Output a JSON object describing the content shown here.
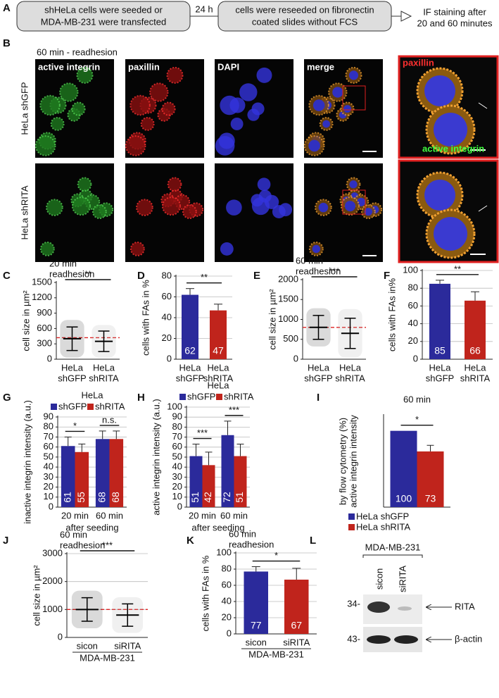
{
  "panel_a": {
    "label": "A",
    "step_1": [
      "shHeLa cells were seeded or",
      "MDA-MB-231 were transfected"
    ],
    "interval": "24 h",
    "step_2": [
      "cells were reseeded on fibronectin",
      "coated slides without FCS"
    ],
    "step_3": [
      "IF staining after",
      "20 and 60 minutes"
    ]
  },
  "panel_b": {
    "label": "B",
    "title": "60 min - readhesion",
    "channels": [
      "active integrin",
      "paxillin",
      "DAPI",
      "merge"
    ],
    "rows": [
      "HeLa shGFP",
      "HeLa shRITA"
    ],
    "zoom_labels": [
      "paxillin",
      "active integrin"
    ]
  },
  "chart_data": [
    {
      "type": "dot",
      "label": "C",
      "title": [
        "20 min",
        "readhesion"
      ],
      "ylabel": "cell size in µm²",
      "categories": [
        [
          "HeLa",
          "shGFP"
        ],
        [
          "HeLa",
          "shRITA"
        ]
      ],
      "means": [
        400,
        350
      ],
      "sd": [
        230,
        200
      ],
      "reference_line": 420,
      "significance": "**",
      "ylim": [
        0,
        1500
      ],
      "yticks": [
        0,
        300,
        600,
        900,
        1200,
        1500
      ]
    },
    {
      "type": "bar",
      "label": "D",
      "ylabel": "cells with FAs in %",
      "categories": [
        [
          "HeLa",
          "shGFP"
        ],
        [
          "HeLa",
          "shRITA"
        ]
      ],
      "values": [
        62,
        47
      ],
      "errors": [
        6,
        6
      ],
      "colors": [
        "#2b2a9b",
        "#c0241c"
      ],
      "significance": "**",
      "ylim": [
        0,
        80
      ],
      "yticks": [
        0,
        20,
        40,
        60,
        80
      ],
      "grid": true
    },
    {
      "type": "dot",
      "label": "E",
      "title": [
        "60 min",
        "readhesion"
      ],
      "ylabel": "cell size in µm²",
      "categories": [
        [
          "HeLa",
          "shGFP"
        ],
        [
          "HeLa",
          "shRITA"
        ]
      ],
      "means": [
        800,
        650
      ],
      "sd": [
        300,
        380
      ],
      "reference_line": 800,
      "significance": "***",
      "ylim": [
        0,
        2000
      ],
      "yticks": [
        0,
        500,
        1000,
        1500,
        2000
      ]
    },
    {
      "type": "bar",
      "label": "F",
      "ylabel": "cells with FAs in%",
      "categories": [
        [
          "HeLa",
          "shGFP"
        ],
        [
          "HeLa",
          "shRITA"
        ]
      ],
      "values": [
        85,
        66
      ],
      "errors": [
        4,
        10
      ],
      "colors": [
        "#2b2a9b",
        "#c0241c"
      ],
      "significance": "**",
      "ylim": [
        0,
        100
      ],
      "yticks": [
        0,
        20,
        40,
        60,
        80,
        100
      ],
      "grid": true
    },
    {
      "type": "grouped_bar",
      "label": "G",
      "title": [
        "HeLa"
      ],
      "ylabel": "inactive integrin intensity (a.u.)",
      "categories": [
        [
          "20 min"
        ],
        [
          "60 min"
        ]
      ],
      "xlabel": "after seeding",
      "series": [
        {
          "name": "shGFP",
          "color": "#2b2a9b",
          "values": [
            61,
            68
          ],
          "errors": [
            9,
            8
          ]
        },
        {
          "name": "shRITA",
          "color": "#c0241c",
          "values": [
            55,
            68
          ],
          "errors": [
            8,
            8
          ]
        }
      ],
      "significance": [
        "*",
        "n.s."
      ],
      "legend": "top",
      "ylim": [
        0,
        90
      ],
      "yticks": [
        0,
        10,
        20,
        30,
        40,
        50,
        60,
        70,
        80,
        90
      ],
      "grid": true
    },
    {
      "type": "grouped_bar",
      "label": "H",
      "title": [
        "HeLa"
      ],
      "ylabel": "active integrin intensity (a.u.)",
      "categories": [
        [
          "20 min"
        ],
        [
          "60 min"
        ]
      ],
      "xlabel": "after seeding",
      "series": [
        {
          "name": "shGFP",
          "color": "#2b2a9b",
          "values": [
            51,
            72
          ],
          "errors": [
            12,
            14
          ]
        },
        {
          "name": "shRITA",
          "color": "#c0241c",
          "values": [
            42,
            51
          ],
          "errors": [
            13,
            12
          ]
        }
      ],
      "significance": [
        "***",
        "***"
      ],
      "legend": "top",
      "ylim": [
        0,
        100
      ],
      "yticks": [
        0,
        10,
        20,
        30,
        40,
        50,
        60,
        70,
        80,
        90,
        100
      ],
      "grid": true
    },
    {
      "type": "grouped_bar",
      "label": "I",
      "title": [
        "60 min"
      ],
      "ylabel": [
        "active integrin intensity",
        "by flow cytometry (%)"
      ],
      "categories": [
        null
      ],
      "series": [
        {
          "name": "HeLa shGFP",
          "color": "#2b2a9b",
          "values": [
            100
          ],
          "errors": [
            0
          ]
        },
        {
          "name": "HeLa shRITA",
          "color": "#c0241c",
          "values": [
            73
          ],
          "errors": [
            8
          ]
        }
      ],
      "significance": [
        "*"
      ],
      "legend": "bottom",
      "ylim": [
        0,
        120
      ]
    },
    {
      "type": "dot",
      "label": "J",
      "title": [
        "60 min",
        "readhesion"
      ],
      "ylabel": "cell size in µm²",
      "categories": [
        [
          "sicon"
        ],
        [
          "siRITA"
        ]
      ],
      "xlabel": "MDA-MB-231",
      "means": [
        1000,
        800
      ],
      "sd": [
        420,
        400
      ],
      "reference_line": 1000,
      "significance": "***",
      "ylim": [
        0,
        3000
      ],
      "yticks": [
        0,
        1000,
        2000,
        3000
      ],
      "grid": true
    },
    {
      "type": "bar",
      "label": "K",
      "title": [
        "60 min",
        "readhesion"
      ],
      "ylabel": "cells with FAs in %",
      "categories": [
        [
          "sicon"
        ],
        [
          "siRITA"
        ]
      ],
      "xlabel": "MDA-MB-231",
      "values": [
        77,
        67
      ],
      "errors": [
        6,
        14
      ],
      "colors": [
        "#2b2a9b",
        "#c0241c"
      ],
      "significance": "*",
      "ylim": [
        0,
        100
      ],
      "yticks": [
        0,
        20,
        40,
        60,
        80,
        100
      ],
      "grid": true
    }
  ],
  "panel_l": {
    "label": "L",
    "cell_line": "MDA-MB-231",
    "lanes": [
      "sicon",
      "siRITA"
    ],
    "markers": [
      "34-",
      "43-"
    ],
    "bands": [
      "RITA",
      "β-actin"
    ]
  }
}
